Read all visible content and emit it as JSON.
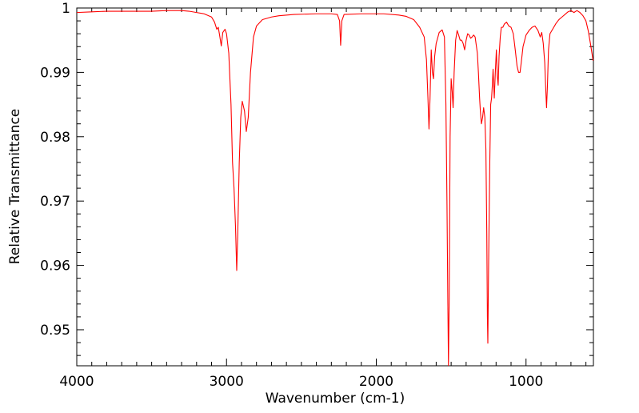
{
  "chart_data": {
    "type": "line",
    "title": "",
    "xlabel": "Wavenumber (cm-1)",
    "ylabel": "Relative Transmittance",
    "xlim": [
      4000,
      550
    ],
    "ylim": [
      0.9444,
      1.0
    ],
    "x_reversed": true,
    "grid": false,
    "legend": "none",
    "x_ticks": [
      {
        "value": 4000,
        "label": "4000"
      },
      {
        "value": 3000,
        "label": "3000"
      },
      {
        "value": 2000,
        "label": "2000"
      },
      {
        "value": 1000,
        "label": "1000"
      }
    ],
    "y_ticks": [
      {
        "value": 1.0,
        "label": "1"
      },
      {
        "value": 0.99,
        "label": "0.99"
      },
      {
        "value": 0.98,
        "label": "0.98"
      },
      {
        "value": 0.97,
        "label": "0.97"
      },
      {
        "value": 0.96,
        "label": "0.96"
      },
      {
        "value": 0.95,
        "label": "0.95"
      }
    ],
    "series": [
      {
        "color": "#ff0000",
        "points": [
          [
            4000,
            0.9993
          ],
          [
            3900,
            0.9994
          ],
          [
            3800,
            0.9995
          ],
          [
            3700,
            0.9995
          ],
          [
            3600,
            0.9995
          ],
          [
            3500,
            0.9995
          ],
          [
            3400,
            0.9996
          ],
          [
            3300,
            0.9996
          ],
          [
            3250,
            0.9995
          ],
          [
            3200,
            0.9993
          ],
          [
            3150,
            0.9991
          ],
          [
            3100,
            0.9986
          ],
          [
            3080,
            0.9978
          ],
          [
            3065,
            0.9967
          ],
          [
            3055,
            0.997
          ],
          [
            3045,
            0.9956
          ],
          [
            3035,
            0.9941
          ],
          [
            3025,
            0.9962
          ],
          [
            3010,
            0.9967
          ],
          [
            3000,
            0.996
          ],
          [
            2985,
            0.993
          ],
          [
            2970,
            0.985
          ],
          [
            2960,
            0.976
          ],
          [
            2950,
            0.972
          ],
          [
            2940,
            0.966
          ],
          [
            2932,
            0.9592
          ],
          [
            2925,
            0.965
          ],
          [
            2915,
            0.976
          ],
          [
            2905,
            0.983
          ],
          [
            2895,
            0.9855
          ],
          [
            2880,
            0.984
          ],
          [
            2868,
            0.9808
          ],
          [
            2855,
            0.983
          ],
          [
            2840,
            0.99
          ],
          [
            2820,
            0.9955
          ],
          [
            2800,
            0.9972
          ],
          [
            2760,
            0.9982
          ],
          [
            2700,
            0.9986
          ],
          [
            2650,
            0.9988
          ],
          [
            2550,
            0.999
          ],
          [
            2400,
            0.9991
          ],
          [
            2300,
            0.9991
          ],
          [
            2260,
            0.999
          ],
          [
            2245,
            0.998
          ],
          [
            2238,
            0.9942
          ],
          [
            2230,
            0.998
          ],
          [
            2215,
            0.999
          ],
          [
            2100,
            0.9991
          ],
          [
            1950,
            0.9991
          ],
          [
            1850,
            0.9989
          ],
          [
            1800,
            0.9987
          ],
          [
            1750,
            0.9982
          ],
          [
            1710,
            0.997
          ],
          [
            1680,
            0.9955
          ],
          [
            1665,
            0.992
          ],
          [
            1655,
            0.986
          ],
          [
            1648,
            0.9812
          ],
          [
            1641,
            0.986
          ],
          [
            1633,
            0.9935
          ],
          [
            1625,
            0.99
          ],
          [
            1618,
            0.989
          ],
          [
            1610,
            0.9925
          ],
          [
            1600,
            0.9945
          ],
          [
            1580,
            0.9962
          ],
          [
            1560,
            0.9966
          ],
          [
            1545,
            0.9955
          ],
          [
            1535,
            0.985
          ],
          [
            1528,
            0.97
          ],
          [
            1522,
            0.954
          ],
          [
            1518,
            0.9444
          ],
          [
            1513,
            0.955
          ],
          [
            1507,
            0.98
          ],
          [
            1500,
            0.989
          ],
          [
            1493,
            0.987
          ],
          [
            1487,
            0.9845
          ],
          [
            1480,
            0.99
          ],
          [
            1470,
            0.995
          ],
          [
            1460,
            0.9965
          ],
          [
            1450,
            0.9958
          ],
          [
            1440,
            0.995
          ],
          [
            1430,
            0.995
          ],
          [
            1420,
            0.9945
          ],
          [
            1410,
            0.9935
          ],
          [
            1400,
            0.995
          ],
          [
            1390,
            0.996
          ],
          [
            1380,
            0.9958
          ],
          [
            1370,
            0.9953
          ],
          [
            1360,
            0.9955
          ],
          [
            1350,
            0.9958
          ],
          [
            1340,
            0.9955
          ],
          [
            1325,
            0.993
          ],
          [
            1318,
            0.99
          ],
          [
            1310,
            0.986
          ],
          [
            1305,
            0.984
          ],
          [
            1298,
            0.982
          ],
          [
            1290,
            0.983
          ],
          [
            1283,
            0.9845
          ],
          [
            1275,
            0.983
          ],
          [
            1268,
            0.978
          ],
          [
            1262,
            0.965
          ],
          [
            1258,
            0.952
          ],
          [
            1255,
            0.9479
          ],
          [
            1250,
            0.96
          ],
          [
            1242,
            0.976
          ],
          [
            1236,
            0.985
          ],
          [
            1230,
            0.986
          ],
          [
            1225,
            0.988
          ],
          [
            1220,
            0.9905
          ],
          [
            1212,
            0.986
          ],
          [
            1205,
            0.99
          ],
          [
            1198,
            0.9935
          ],
          [
            1192,
            0.9895
          ],
          [
            1186,
            0.988
          ],
          [
            1180,
            0.9925
          ],
          [
            1172,
            0.9955
          ],
          [
            1165,
            0.997
          ],
          [
            1155,
            0.997
          ],
          [
            1145,
            0.9975
          ],
          [
            1130,
            0.9978
          ],
          [
            1115,
            0.9972
          ],
          [
            1100,
            0.997
          ],
          [
            1085,
            0.996
          ],
          [
            1072,
            0.9935
          ],
          [
            1060,
            0.991
          ],
          [
            1050,
            0.99
          ],
          [
            1040,
            0.99
          ],
          [
            1032,
            0.9915
          ],
          [
            1020,
            0.994
          ],
          [
            1000,
            0.9958
          ],
          [
            980,
            0.9965
          ],
          [
            960,
            0.997
          ],
          [
            940,
            0.9972
          ],
          [
            920,
            0.9965
          ],
          [
            905,
            0.9955
          ],
          [
            895,
            0.9962
          ],
          [
            885,
            0.9945
          ],
          [
            875,
            0.9915
          ],
          [
            868,
            0.9872
          ],
          [
            863,
            0.9845
          ],
          [
            857,
            0.988
          ],
          [
            850,
            0.9935
          ],
          [
            840,
            0.996
          ],
          [
            820,
            0.9968
          ],
          [
            800,
            0.9976
          ],
          [
            780,
            0.9982
          ],
          [
            760,
            0.9986
          ],
          [
            740,
            0.999
          ],
          [
            720,
            0.9994
          ],
          [
            700,
            0.9996
          ],
          [
            680,
            0.9993
          ],
          [
            660,
            0.9996
          ],
          [
            640,
            0.9993
          ],
          [
            620,
            0.9988
          ],
          [
            600,
            0.998
          ],
          [
            585,
            0.9965
          ],
          [
            570,
            0.9945
          ],
          [
            560,
            0.993
          ],
          [
            552,
            0.9918
          ]
        ]
      }
    ]
  }
}
